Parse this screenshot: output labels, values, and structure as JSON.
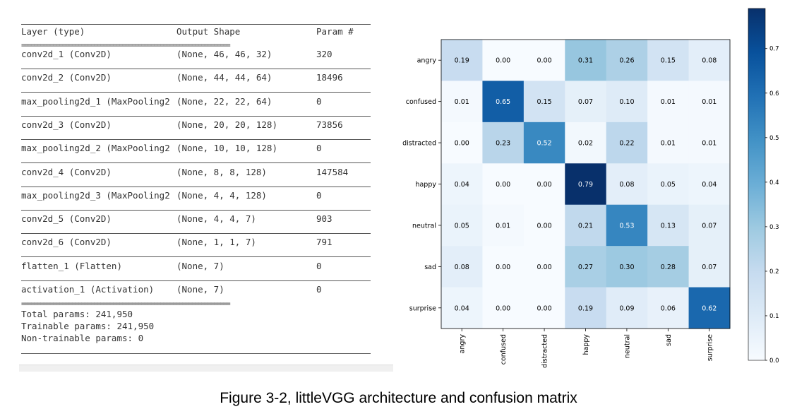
{
  "model_summary": {
    "headers": {
      "layer": "Layer (type)",
      "shape": "Output Shape",
      "params": "Param #"
    },
    "separator": "==================================================================",
    "rows": [
      {
        "layer": "conv2d_1 (Conv2D)",
        "shape": "(None, 46, 46, 32)",
        "params": "320"
      },
      {
        "layer": "conv2d_2 (Conv2D)",
        "shape": "(None, 44, 44, 64)",
        "params": "18496"
      },
      {
        "layer": "max_pooling2d_1 (MaxPooling2",
        "shape": "(None, 22, 22, 64)",
        "params": "0"
      },
      {
        "layer": "conv2d_3 (Conv2D)",
        "shape": "(None, 20, 20, 128)",
        "params": "73856"
      },
      {
        "layer": "max_pooling2d_2 (MaxPooling2",
        "shape": "(None, 10, 10, 128)",
        "params": "0"
      },
      {
        "layer": "conv2d_4 (Conv2D)",
        "shape": "(None, 8, 8, 128)",
        "params": "147584"
      },
      {
        "layer": "max_pooling2d_3 (MaxPooling2",
        "shape": "(None, 4, 4, 128)",
        "params": "0"
      },
      {
        "layer": "conv2d_5 (Conv2D)",
        "shape": "(None, 4, 4, 7)",
        "params": "903"
      },
      {
        "layer": "conv2d_6 (Conv2D)",
        "shape": "(None, 1, 1, 7)",
        "params": "791"
      },
      {
        "layer": "flatten_1 (Flatten)",
        "shape": "(None, 7)",
        "params": "0"
      },
      {
        "layer": "activation_1 (Activation)",
        "shape": "(None, 7)",
        "params": "0"
      }
    ],
    "totals": [
      "Total params: 241,950",
      "Trainable params: 241,950",
      "Non-trainable params: 0"
    ]
  },
  "chart_data": {
    "type": "heatmap",
    "rows": [
      "angry",
      "confused",
      "distracted",
      "happy",
      "neutral",
      "sad",
      "surprise"
    ],
    "columns": [
      "angry",
      "confused",
      "distracted",
      "happy",
      "neutral",
      "sad",
      "surprise"
    ],
    "values": [
      [
        0.19,
        0.0,
        0.0,
        0.31,
        0.26,
        0.15,
        0.08
      ],
      [
        0.01,
        0.65,
        0.15,
        0.07,
        0.1,
        0.01,
        0.01
      ],
      [
        0.0,
        0.23,
        0.52,
        0.02,
        0.22,
        0.01,
        0.01
      ],
      [
        0.04,
        0.0,
        0.0,
        0.79,
        0.08,
        0.05,
        0.04
      ],
      [
        0.05,
        0.01,
        0.0,
        0.21,
        0.53,
        0.13,
        0.07
      ],
      [
        0.08,
        0.0,
        0.0,
        0.27,
        0.3,
        0.28,
        0.07
      ],
      [
        0.04,
        0.0,
        0.0,
        0.19,
        0.09,
        0.06,
        0.62
      ]
    ],
    "colormap": "Blues",
    "colorbar": {
      "min": 0.0,
      "max": 0.79,
      "ticks": [
        "0.0",
        "0.1",
        "0.2",
        "0.3",
        "0.4",
        "0.5",
        "0.6",
        "0.7"
      ]
    }
  },
  "caption": "Figure 3-2, littleVGG architecture and confusion matrix"
}
